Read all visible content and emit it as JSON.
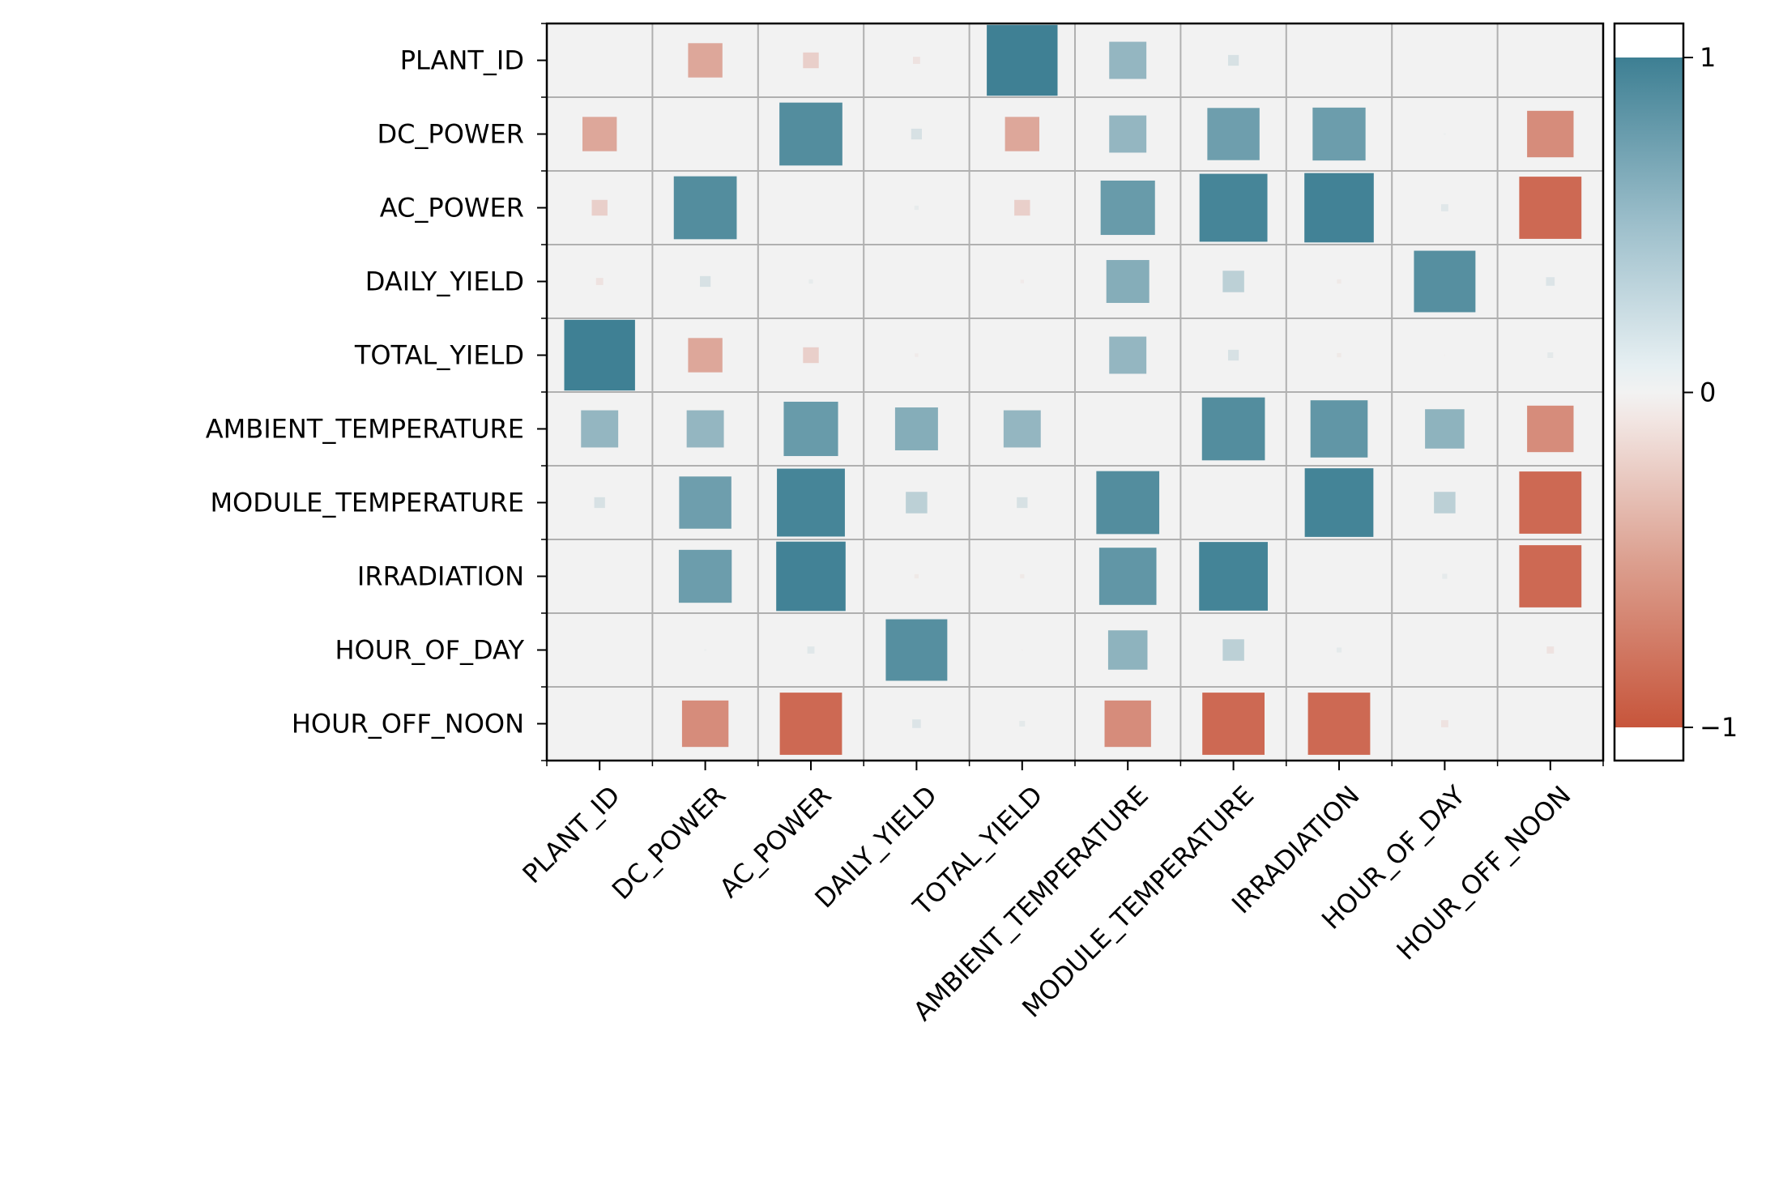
{
  "chart_data": {
    "type": "heatmap",
    "title": "",
    "xlabel": "",
    "ylabel": "",
    "variables": [
      "PLANT_ID",
      "DC_POWER",
      "AC_POWER",
      "DAILY_YIELD",
      "TOTAL_YIELD",
      "AMBIENT_TEMPERATURE",
      "MODULE_TEMPERATURE",
      "IRRADIATION",
      "HOUR_OF_DAY",
      "HOUR_OFF_NOON"
    ],
    "x_tick_labels": [
      "PLANT_ID",
      "DC_POWER",
      "AC_POWER",
      "DAILY_YIELD",
      "TOTAL_YIELD",
      "AMBIENT_TEMPERATURE",
      "MODULE_TEMPERATURE",
      "IRRADIATION",
      "HOUR_OF_DAY",
      "HOUR_OFF_NOON"
    ],
    "y_tick_labels": [
      "PLANT_ID",
      "DC_POWER",
      "AC_POWER",
      "DAILY_YIELD",
      "TOTAL_YIELD",
      "AMBIENT_TEMPERATURE",
      "MODULE_TEMPERATURE",
      "IRRADIATION",
      "HOUR_OF_DAY",
      "HOUR_OFF_NOON"
    ],
    "matrix": [
      [
        null,
        -0.48,
        -0.22,
        -0.1,
        0.99,
        0.52,
        0.15,
        0.0,
        0.0,
        0.0
      ],
      [
        -0.48,
        null,
        0.88,
        0.15,
        -0.48,
        0.52,
        0.73,
        0.74,
        0.03,
        -0.65
      ],
      [
        -0.22,
        0.88,
        null,
        0.06,
        -0.22,
        0.76,
        0.95,
        0.97,
        0.1,
        -0.87
      ],
      [
        -0.1,
        0.15,
        0.06,
        null,
        -0.05,
        0.6,
        0.3,
        -0.06,
        0.86,
        0.12
      ],
      [
        0.99,
        -0.48,
        -0.22,
        -0.05,
        null,
        0.52,
        0.15,
        -0.06,
        -0.02,
        0.08
      ],
      [
        0.52,
        0.52,
        0.76,
        0.6,
        0.52,
        null,
        0.88,
        0.8,
        0.55,
        -0.65
      ],
      [
        0.15,
        0.73,
        0.95,
        0.3,
        0.15,
        0.88,
        null,
        0.96,
        0.3,
        -0.87
      ],
      [
        0.0,
        0.74,
        0.97,
        -0.06,
        -0.06,
        0.8,
        0.96,
        null,
        0.07,
        -0.87
      ],
      [
        0.0,
        0.03,
        0.1,
        0.86,
        -0.02,
        0.55,
        0.3,
        0.07,
        null,
        -0.1
      ],
      [
        0.0,
        -0.65,
        -0.87,
        0.12,
        0.08,
        -0.65,
        -0.87,
        -0.87,
        -0.1,
        null
      ]
    ],
    "colorbar": {
      "range": [
        -1,
        1
      ],
      "tick_labels": [
        "1",
        "0",
        "−1"
      ],
      "tick_values": [
        1,
        0,
        -1
      ]
    },
    "colors": {
      "positive": "#3d7f93",
      "neutral": "#f2f2f2",
      "negative": "#c7553b",
      "grid": "#b0b0b0",
      "frame": "#000000"
    },
    "grid": true,
    "legend_placement": "right colorbar",
    "diagonal": "blank"
  }
}
